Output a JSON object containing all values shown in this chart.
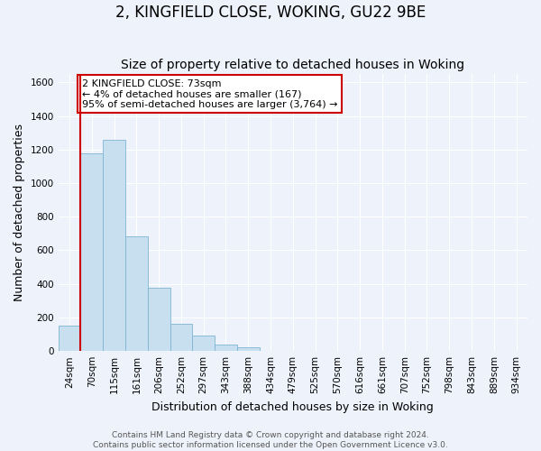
{
  "title": "2, KINGFIELD CLOSE, WOKING, GU22 9BE",
  "subtitle": "Size of property relative to detached houses in Woking",
  "xlabel": "Distribution of detached houses by size in Woking",
  "ylabel": "Number of detached properties",
  "bar_labels": [
    "24sqm",
    "70sqm",
    "115sqm",
    "161sqm",
    "206sqm",
    "252sqm",
    "297sqm",
    "343sqm",
    "388sqm",
    "434sqm",
    "479sqm",
    "525sqm",
    "570sqm",
    "616sqm",
    "661sqm",
    "707sqm",
    "752sqm",
    "798sqm",
    "843sqm",
    "889sqm",
    "934sqm"
  ],
  "bar_values": [
    150,
    1175,
    1260,
    685,
    375,
    160,
    90,
    38,
    22,
    0,
    0,
    0,
    0,
    0,
    0,
    0,
    0,
    0,
    0,
    0,
    0
  ],
  "bar_color": "#c8dff0",
  "bar_edge_color": "#7fb4d4",
  "vline_color": "#cc0000",
  "ylim": [
    0,
    1650
  ],
  "yticks": [
    0,
    200,
    400,
    600,
    800,
    1000,
    1200,
    1400,
    1600
  ],
  "annotation_title": "2 KINGFIELD CLOSE: 73sqm",
  "annotation_line1": "← 4% of detached houses are smaller (167)",
  "annotation_line2": "95% of semi-detached houses are larger (3,764) →",
  "footer_line1": "Contains HM Land Registry data © Crown copyright and database right 2024.",
  "footer_line2": "Contains public sector information licensed under the Open Government Licence v3.0.",
  "background_color": "#eef2fa",
  "grid_color": "#ffffff",
  "title_fontsize": 12,
  "subtitle_fontsize": 10,
  "axis_label_fontsize": 9,
  "tick_fontsize": 7.5,
  "annotation_fontsize": 8,
  "footer_fontsize": 6.5
}
